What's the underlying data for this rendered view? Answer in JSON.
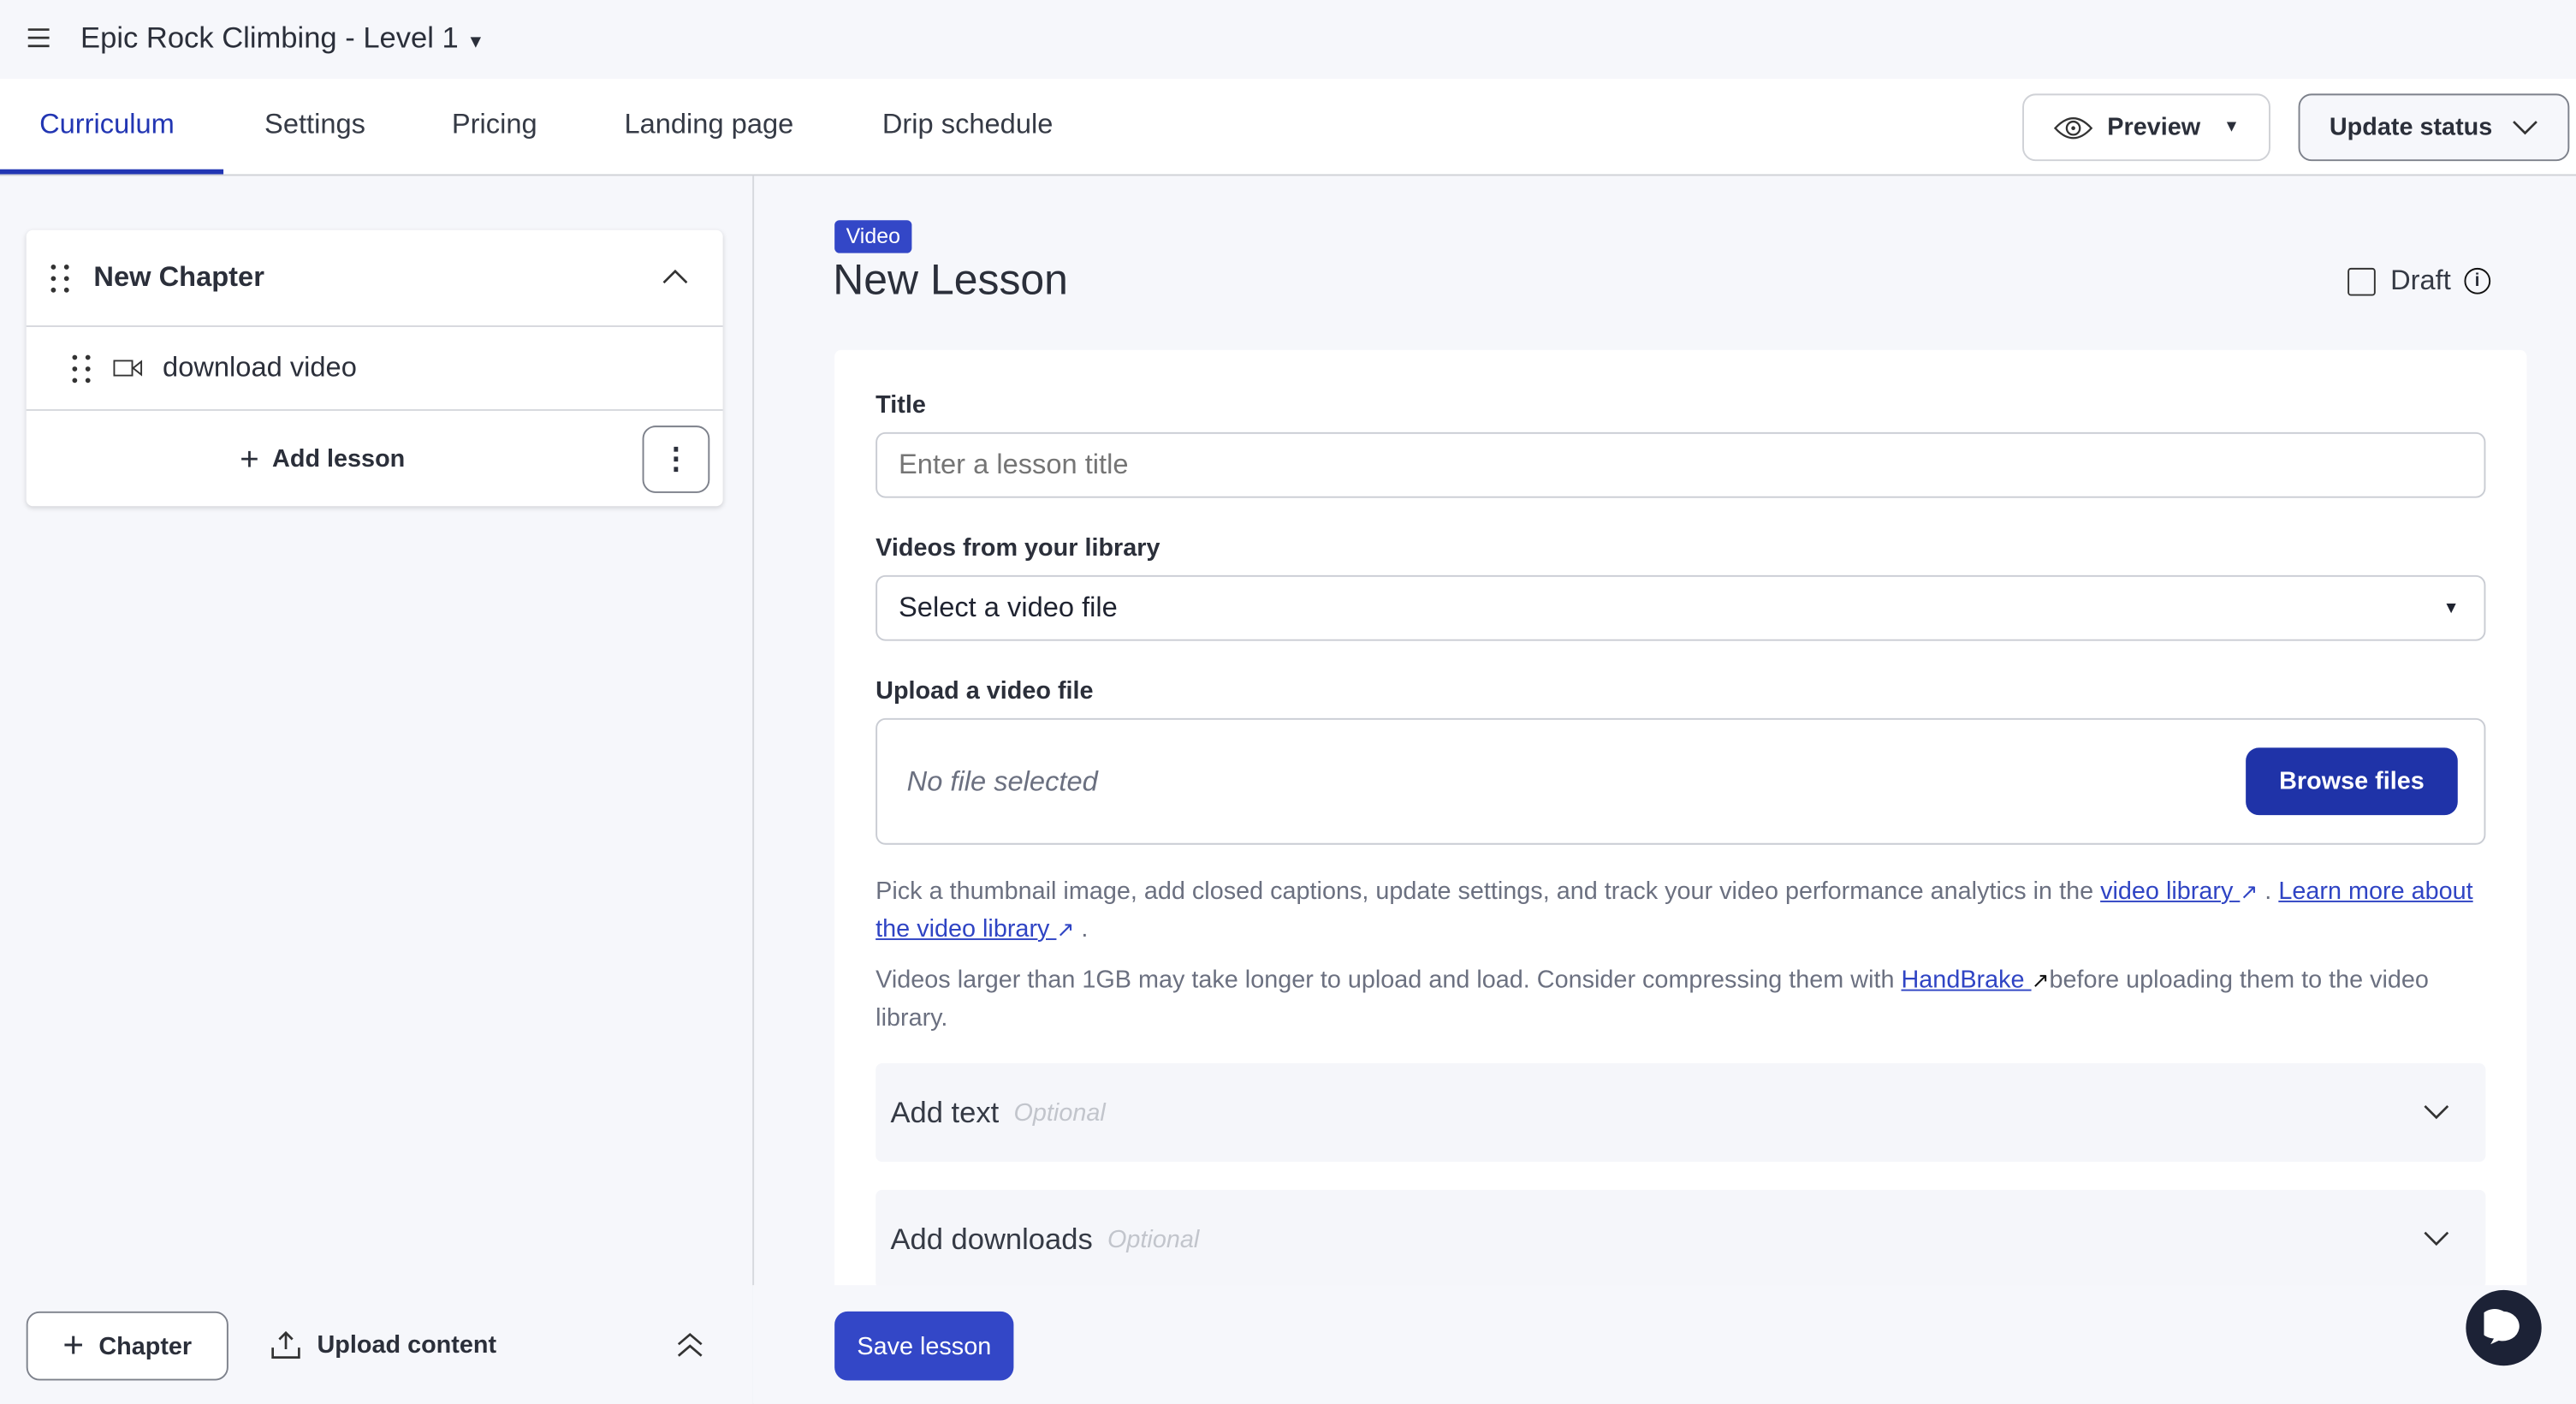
{
  "header": {
    "title": "Epic Rock Climbing - Level 1"
  },
  "tabs": [
    {
      "label": "Curriculum",
      "active": true
    },
    {
      "label": "Settings"
    },
    {
      "label": "Pricing"
    },
    {
      "label": "Landing page"
    },
    {
      "label": "Drip schedule"
    }
  ],
  "toolbar": {
    "preview_label": "Preview",
    "update_status_label": "Update status"
  },
  "sidebar": {
    "chapter": {
      "title": "New Chapter",
      "lessons": [
        {
          "title": "download video",
          "icon": "video-icon"
        }
      ],
      "add_lesson_label": "Add lesson"
    },
    "add_chapter_label": "Chapter",
    "upload_content_label": "Upload content"
  },
  "lesson": {
    "type_badge": "Video",
    "title": "New Lesson",
    "draft_label": "Draft",
    "draft_checked": false,
    "title_label": "Title",
    "title_placeholder": "Enter a lesson title",
    "library_label": "Videos from your library",
    "library_selected": "Select a video file",
    "upload_label": "Upload a video file",
    "no_file": "No file selected",
    "browse_label": "Browse files",
    "help1_pre": "Pick a thumbnail image, add closed captions, update settings, and track your video performance analytics in the ",
    "help1_link1": "video library ",
    "help1_mid": " . ",
    "help1_link2": "Learn more about the video library ",
    "help1_end": " .",
    "help2_pre": "Videos larger than 1GB may take longer to upload and load. Consider compressing them with ",
    "help2_link": "HandBrake ",
    "help2_end": "before uploading them to the video library.",
    "accordions": [
      {
        "title": "Add text",
        "optional": "Optional"
      },
      {
        "title": "Add downloads",
        "optional": "Optional"
      }
    ],
    "save_label": "Save lesson"
  },
  "colors": {
    "accent": "#2236b3",
    "badge": "#3347c7",
    "link": "#2f44c4",
    "chat": "#1c2236"
  }
}
